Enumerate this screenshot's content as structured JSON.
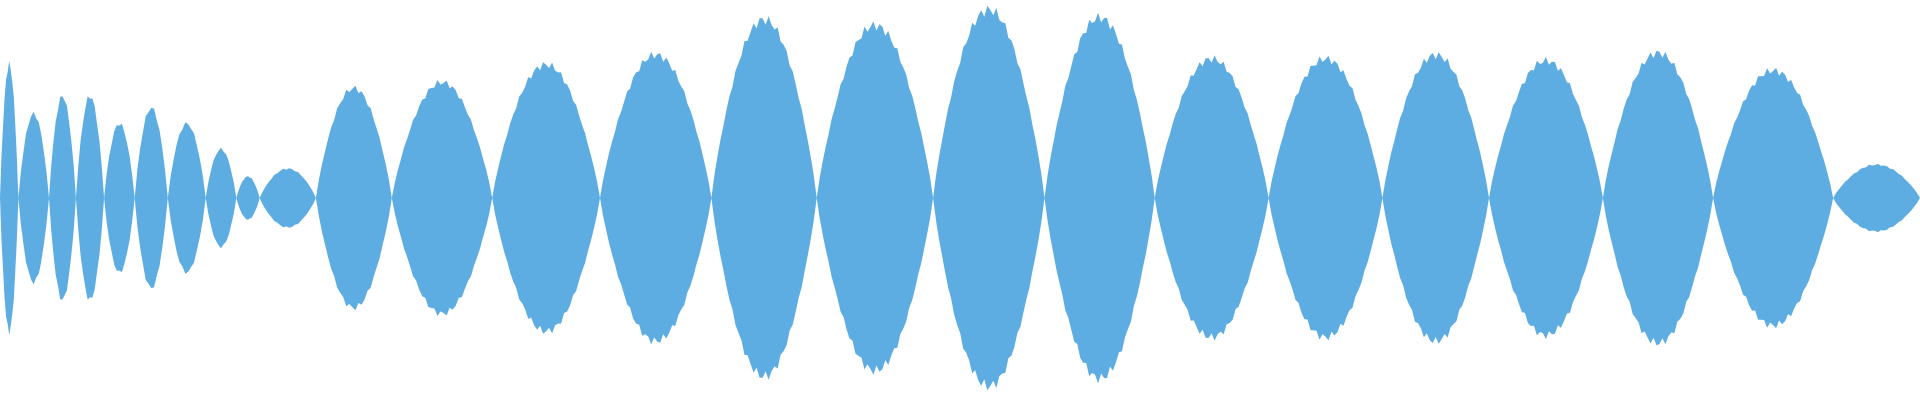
{
  "waveform": {
    "color": "#5dade2",
    "segments": [
      {
        "length": 15,
        "peak": 68
      },
      {
        "length": 25,
        "peak": 43
      },
      {
        "length": 22,
        "peak": 52
      },
      {
        "length": 23,
        "peak": 52
      },
      {
        "length": 25,
        "peak": 38
      },
      {
        "length": 27,
        "peak": 46
      },
      {
        "length": 31,
        "peak": 38
      },
      {
        "length": 25,
        "peak": 25
      },
      {
        "length": 19,
        "peak": 11
      },
      {
        "length": 46,
        "peak": 15
      },
      {
        "length": 62,
        "peak": 56
      },
      {
        "length": 82,
        "peak": 59
      },
      {
        "length": 88,
        "peak": 68
      },
      {
        "length": 91,
        "peak": 73
      },
      {
        "length": 86,
        "peak": 91
      },
      {
        "length": 95,
        "peak": 88
      },
      {
        "length": 91,
        "peak": 96
      },
      {
        "length": 90,
        "peak": 92
      },
      {
        "length": 93,
        "peak": 71
      },
      {
        "length": 93,
        "peak": 71
      },
      {
        "length": 87,
        "peak": 73
      },
      {
        "length": 93,
        "peak": 70
      },
      {
        "length": 90,
        "peak": 74
      },
      {
        "length": 98,
        "peak": 65
      },
      {
        "length": 71,
        "peak": 17
      }
    ]
  }
}
